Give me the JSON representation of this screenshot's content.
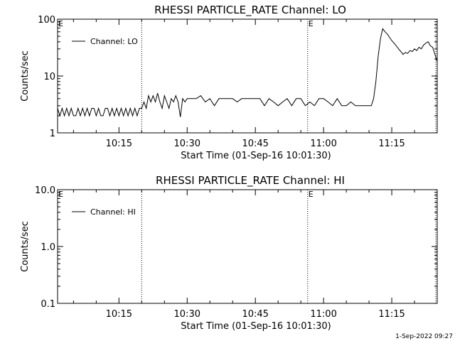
{
  "footer_stamp": "1-Sep-2022 09:27",
  "chart_data": [
    {
      "type": "line",
      "title": "RHESSI PARTICLE_RATE Channel: LO",
      "xlabel": "Start Time (01-Sep-16 10:01:30)",
      "ylabel": "Counts/sec",
      "yscale": "log",
      "ylim": [
        1,
        100
      ],
      "xlim": [
        "10:01:30",
        "11:25:00"
      ],
      "y_tick_labels": [
        "1",
        "10",
        "100"
      ],
      "y_tick_values": [
        1,
        10,
        100
      ],
      "x_tick_labels": [
        "10:15",
        "10:30",
        "10:45",
        "11:00",
        "11:15"
      ],
      "x_tick_values": [
        "10:15",
        "10:30",
        "10:45",
        "11:00",
        "11:15"
      ],
      "vlines": [
        "10:20:00",
        "10:56:30"
      ],
      "markers": [
        {
          "text": "E",
          "time": "10:01:30"
        },
        {
          "text": "E",
          "time": "10:56:30"
        }
      ],
      "legend": {
        "label": "Channel: LO",
        "position": "top-left"
      },
      "grid": false,
      "series": [
        {
          "name": "Channel: LO",
          "x": [
            "10:01:30",
            "10:02:00",
            "10:02:30",
            "10:03:00",
            "10:03:30",
            "10:04:00",
            "10:04:30",
            "10:05:00",
            "10:05:30",
            "10:06:00",
            "10:06:30",
            "10:07:00",
            "10:07:30",
            "10:08:00",
            "10:08:30",
            "10:09:00",
            "10:09:30",
            "10:10:00",
            "10:10:30",
            "10:11:00",
            "10:11:30",
            "10:12:00",
            "10:12:30",
            "10:13:00",
            "10:13:30",
            "10:14:00",
            "10:14:30",
            "10:15:00",
            "10:15:30",
            "10:16:00",
            "10:16:30",
            "10:17:00",
            "10:17:30",
            "10:18:00",
            "10:18:30",
            "10:19:00",
            "10:19:30",
            "10:20:00",
            "10:20:30",
            "10:21:00",
            "10:21:30",
            "10:22:00",
            "10:22:30",
            "10:23:00",
            "10:23:30",
            "10:24:00",
            "10:24:30",
            "10:25:00",
            "10:25:30",
            "10:26:00",
            "10:26:30",
            "10:27:00",
            "10:27:30",
            "10:28:00",
            "10:28:30",
            "10:29:00",
            "10:29:30",
            "10:30:00",
            "10:31:00",
            "10:32:00",
            "10:33:00",
            "10:34:00",
            "10:35:00",
            "10:36:00",
            "10:37:00",
            "10:38:00",
            "10:39:00",
            "10:40:00",
            "10:41:00",
            "10:42:00",
            "10:43:00",
            "10:44:00",
            "10:45:00",
            "10:46:00",
            "10:47:00",
            "10:48:00",
            "10:49:00",
            "10:50:00",
            "10:51:00",
            "10:52:00",
            "10:53:00",
            "10:54:00",
            "10:55:00",
            "10:56:00",
            "10:57:00",
            "10:58:00",
            "10:59:00",
            "11:00:00",
            "11:01:00",
            "11:02:00",
            "11:03:00",
            "11:04:00",
            "11:05:00",
            "11:06:00",
            "11:07:00",
            "11:08:00",
            "11:09:00",
            "11:10:00",
            "11:10:30",
            "11:11:00",
            "11:11:30",
            "11:12:00",
            "11:12:30",
            "11:13:00",
            "11:13:30",
            "11:14:00",
            "11:14:30",
            "11:15:00",
            "11:15:30",
            "11:16:00",
            "11:16:30",
            "11:17:00",
            "11:17:30",
            "11:18:00",
            "11:18:30",
            "11:19:00",
            "11:19:30",
            "11:20:00",
            "11:20:30",
            "11:21:00",
            "11:21:30",
            "11:22:00",
            "11:22:30",
            "11:23:00",
            "11:23:30",
            "11:24:00",
            "11:24:30",
            "11:25:00"
          ],
          "y": [
            2.7,
            2,
            2.7,
            2,
            2.7,
            2,
            2.7,
            2,
            2,
            2.7,
            2,
            2.7,
            2,
            2.7,
            2,
            2.7,
            2.7,
            2,
            2.7,
            2,
            2,
            2.7,
            2.7,
            2,
            2.7,
            2,
            2.7,
            2,
            2.7,
            2,
            2.7,
            2,
            2.7,
            2,
            2.7,
            2,
            2.7,
            2.7,
            3.5,
            2.7,
            4.5,
            3.5,
            4.5,
            3.5,
            5,
            3.5,
            2.7,
            4.5,
            3.5,
            2.7,
            4,
            3.5,
            4.5,
            3.5,
            1.9,
            4,
            3.5,
            4,
            4,
            4,
            4.5,
            3.5,
            4,
            3,
            4,
            4,
            4,
            4,
            3.5,
            4,
            4,
            4,
            4,
            4,
            3,
            4,
            3.5,
            3,
            3.5,
            4,
            3,
            4,
            4,
            3,
            3.5,
            3,
            4,
            4,
            3.5,
            3,
            4,
            3,
            3,
            3.5,
            3,
            3,
            3,
            3,
            3,
            4,
            8,
            22,
            45,
            68,
            60,
            55,
            48,
            42,
            38,
            34,
            30,
            27,
            24,
            26,
            25,
            28,
            27,
            30,
            28,
            32,
            30,
            35,
            38,
            40,
            34,
            32,
            24,
            18
          ]
        }
      ]
    },
    {
      "type": "line",
      "title": "RHESSI PARTICLE_RATE Channel: HI",
      "xlabel": "Start Time (01-Sep-16 10:01:30)",
      "ylabel": "Counts/sec",
      "yscale": "log",
      "ylim": [
        0.1,
        10
      ],
      "xlim": [
        "10:01:30",
        "11:25:00"
      ],
      "y_tick_labels": [
        "0.1",
        "1.0",
        "10.0"
      ],
      "y_tick_values": [
        0.1,
        1,
        10
      ],
      "x_tick_labels": [
        "10:15",
        "10:30",
        "10:45",
        "11:00",
        "11:15"
      ],
      "x_tick_values": [
        "10:15",
        "10:30",
        "10:45",
        "11:00",
        "11:15"
      ],
      "vlines": [
        "10:20:00",
        "10:56:30"
      ],
      "markers": [
        {
          "text": "E",
          "time": "10:01:30"
        },
        {
          "text": "E",
          "time": "10:56:30"
        }
      ],
      "legend": {
        "label": "Channel: HI",
        "position": "top-left"
      },
      "grid": false,
      "series": [
        {
          "name": "Channel: HI",
          "x": [],
          "y": []
        }
      ]
    }
  ]
}
